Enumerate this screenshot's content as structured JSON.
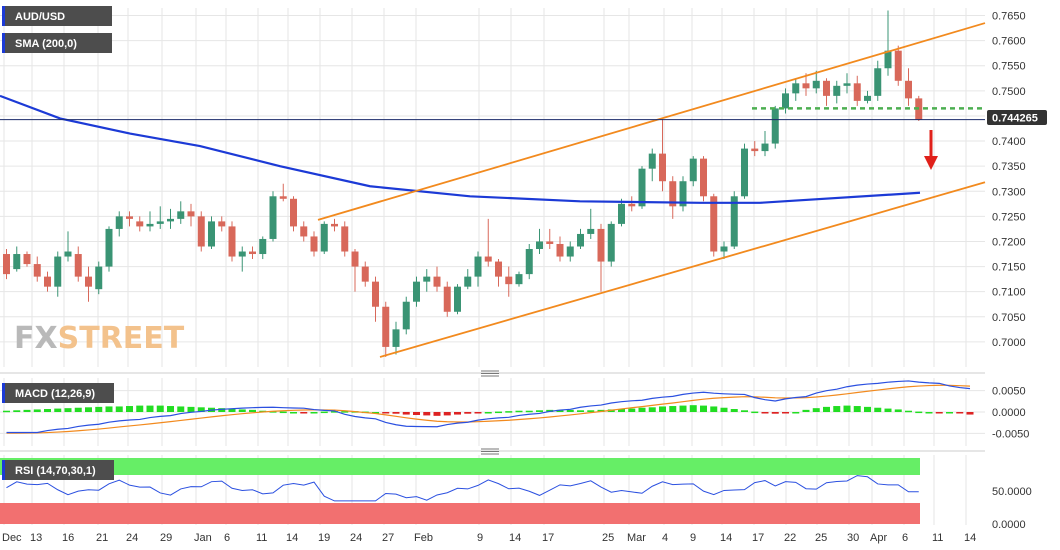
{
  "colors": {
    "up": "#3a9474",
    "down": "#d8685a",
    "sma": "#1c3ad6",
    "channel": "#f28a1e",
    "support": "#4caf50",
    "macd_line": "#2b50e0",
    "signal_line": "#f28a1e",
    "hist_pos": "#22dd22",
    "hist_neg": "#dd2222",
    "rsi_line": "#2b50e0",
    "rsi_overbought": "#66ee66",
    "rsi_oversold": "#f27070",
    "arrow": "#e0201a",
    "grid": "#e6e6e6"
  },
  "watermark": {
    "part1": "FX",
    "part2": "STREET"
  },
  "legends": {
    "symbol": "AUD/USD",
    "sma": "SMA (200,0)",
    "macd": "MACD (12,26,9)",
    "rsi": "RSI (14,70,30,1)"
  },
  "price_tag": "0.744265",
  "chart_data": [
    {
      "type": "candlestick",
      "title": "AUD/USD",
      "ylim": [
        0.695,
        0.7665
      ],
      "yticks": [
        "0.7000",
        "0.7050",
        "0.7100",
        "0.7150",
        "0.7200",
        "0.7250",
        "0.7300",
        "0.7350",
        "0.7400",
        "0.7450",
        "0.7500",
        "0.7550",
        "0.7600",
        "0.7650"
      ],
      "xticks": [
        "Dec",
        "13",
        "16",
        "21",
        "24",
        "29",
        "Jan",
        "6",
        "11",
        "14",
        "19",
        "24",
        "27",
        "Feb",
        "9",
        "14",
        "17",
        "25",
        "Mar",
        "4",
        "9",
        "14",
        "17",
        "22",
        "25",
        "30",
        "Apr",
        "6",
        "11",
        "14"
      ],
      "candles": [
        [
          0.7175,
          0.7185,
          0.7125,
          0.7135
        ],
        [
          0.7145,
          0.719,
          0.714,
          0.7175
        ],
        [
          0.7175,
          0.718,
          0.715,
          0.7155
        ],
        [
          0.7155,
          0.717,
          0.712,
          0.713
        ],
        [
          0.713,
          0.714,
          0.71,
          0.711
        ],
        [
          0.711,
          0.718,
          0.709,
          0.717
        ],
        [
          0.717,
          0.722,
          0.716,
          0.718
        ],
        [
          0.7175,
          0.719,
          0.712,
          0.713
        ],
        [
          0.713,
          0.715,
          0.708,
          0.711
        ],
        [
          0.7105,
          0.716,
          0.7095,
          0.715
        ],
        [
          0.715,
          0.723,
          0.714,
          0.7225
        ],
        [
          0.7225,
          0.726,
          0.721,
          0.725
        ],
        [
          0.725,
          0.726,
          0.723,
          0.7245
        ],
        [
          0.724,
          0.725,
          0.722,
          0.723
        ],
        [
          0.723,
          0.726,
          0.722,
          0.7235
        ],
        [
          0.7235,
          0.727,
          0.7225,
          0.724
        ],
        [
          0.724,
          0.7265,
          0.7225,
          0.7245
        ],
        [
          0.7245,
          0.728,
          0.7235,
          0.726
        ],
        [
          0.726,
          0.7275,
          0.723,
          0.725
        ],
        [
          0.725,
          0.726,
          0.718,
          0.719
        ],
        [
          0.719,
          0.725,
          0.7185,
          0.724
        ],
        [
          0.724,
          0.725,
          0.722,
          0.723
        ],
        [
          0.723,
          0.724,
          0.716,
          0.717
        ],
        [
          0.717,
          0.719,
          0.714,
          0.718
        ],
        [
          0.718,
          0.719,
          0.7165,
          0.7175
        ],
        [
          0.7175,
          0.721,
          0.7165,
          0.7205
        ],
        [
          0.7205,
          0.73,
          0.72,
          0.729
        ],
        [
          0.729,
          0.7315,
          0.728,
          0.7285
        ],
        [
          0.7285,
          0.729,
          0.722,
          0.723
        ],
        [
          0.723,
          0.724,
          0.72,
          0.721
        ],
        [
          0.721,
          0.722,
          0.717,
          0.718
        ],
        [
          0.718,
          0.724,
          0.7175,
          0.7235
        ],
        [
          0.7235,
          0.7245,
          0.722,
          0.723
        ],
        [
          0.723,
          0.724,
          0.717,
          0.718
        ],
        [
          0.718,
          0.7185,
          0.71,
          0.715
        ],
        [
          0.715,
          0.716,
          0.711,
          0.712
        ],
        [
          0.712,
          0.713,
          0.704,
          0.707
        ],
        [
          0.707,
          0.708,
          0.697,
          0.699
        ],
        [
          0.699,
          0.704,
          0.6975,
          0.7025
        ],
        [
          0.7025,
          0.709,
          0.7015,
          0.708
        ],
        [
          0.708,
          0.713,
          0.707,
          0.712
        ],
        [
          0.712,
          0.7145,
          0.71,
          0.713
        ],
        [
          0.713,
          0.715,
          0.71,
          0.711
        ],
        [
          0.711,
          0.712,
          0.705,
          0.706
        ],
        [
          0.706,
          0.7115,
          0.7055,
          0.711
        ],
        [
          0.711,
          0.7145,
          0.7105,
          0.713
        ],
        [
          0.713,
          0.718,
          0.711,
          0.717
        ],
        [
          0.717,
          0.7245,
          0.715,
          0.716
        ],
        [
          0.716,
          0.7165,
          0.711,
          0.713
        ],
        [
          0.713,
          0.715,
          0.709,
          0.7115
        ],
        [
          0.7115,
          0.714,
          0.711,
          0.7135
        ],
        [
          0.7135,
          0.7195,
          0.7125,
          0.7185
        ],
        [
          0.7185,
          0.7225,
          0.7175,
          0.72
        ],
        [
          0.72,
          0.7225,
          0.7185,
          0.7195
        ],
        [
          0.7195,
          0.721,
          0.716,
          0.717
        ],
        [
          0.717,
          0.72,
          0.716,
          0.719
        ],
        [
          0.719,
          0.7225,
          0.7185,
          0.7215
        ],
        [
          0.7215,
          0.7265,
          0.7205,
          0.7225
        ],
        [
          0.7225,
          0.7235,
          0.71,
          0.716
        ],
        [
          0.716,
          0.724,
          0.715,
          0.7235
        ],
        [
          0.7235,
          0.7285,
          0.723,
          0.7275
        ],
        [
          0.7275,
          0.729,
          0.726,
          0.727
        ],
        [
          0.727,
          0.735,
          0.7265,
          0.7345
        ],
        [
          0.7345,
          0.7385,
          0.732,
          0.7375
        ],
        [
          0.7375,
          0.7445,
          0.73,
          0.732
        ],
        [
          0.732,
          0.733,
          0.7245,
          0.727
        ],
        [
          0.727,
          0.733,
          0.726,
          0.732
        ],
        [
          0.732,
          0.737,
          0.731,
          0.7365
        ],
        [
          0.7365,
          0.737,
          0.728,
          0.729
        ],
        [
          0.729,
          0.7295,
          0.717,
          0.718
        ],
        [
          0.718,
          0.72,
          0.7165,
          0.719
        ],
        [
          0.719,
          0.73,
          0.7185,
          0.729
        ],
        [
          0.729,
          0.7395,
          0.7285,
          0.7385
        ],
        [
          0.7385,
          0.74,
          0.737,
          0.738
        ],
        [
          0.738,
          0.742,
          0.737,
          0.7395
        ],
        [
          0.7395,
          0.747,
          0.7385,
          0.7465
        ],
        [
          0.7465,
          0.7505,
          0.7455,
          0.7495
        ],
        [
          0.7495,
          0.7525,
          0.748,
          0.7515
        ],
        [
          0.7515,
          0.7535,
          0.749,
          0.7505
        ],
        [
          0.7505,
          0.754,
          0.7495,
          0.752
        ],
        [
          0.752,
          0.7525,
          0.747,
          0.749
        ],
        [
          0.749,
          0.752,
          0.7475,
          0.751
        ],
        [
          0.751,
          0.7535,
          0.7495,
          0.7515
        ],
        [
          0.7515,
          0.753,
          0.747,
          0.748
        ],
        [
          0.748,
          0.75,
          0.7475,
          0.749
        ],
        [
          0.749,
          0.756,
          0.748,
          0.7545
        ],
        [
          0.7545,
          0.766,
          0.753,
          0.758
        ],
        [
          0.758,
          0.759,
          0.751,
          0.752
        ],
        [
          0.752,
          0.7545,
          0.747,
          0.7485
        ],
        [
          0.7485,
          0.749,
          0.744,
          0.7443
        ]
      ],
      "sma200": {
        "name": "SMA (200,0)",
        "values": [
          0.749,
          0.7445,
          0.7415,
          0.739,
          0.735,
          0.731,
          0.729,
          0.728,
          0.7277,
          0.7277
        ]
      },
      "channel_upper": {
        "from": [
          0.7243,
          19
        ],
        "to": [
          0.7635,
          153
        ]
      },
      "channel_lower": {
        "from": [
          0.697,
          29
        ],
        "to": [
          0.7318,
          153
        ]
      },
      "support_level": 0.7465,
      "last_price": 0.744265
    },
    {
      "type": "macd",
      "title": "MACD (12,26,9)",
      "ylim": [
        -0.0075,
        0.0075
      ],
      "yticks": [
        "0.0050",
        "0.0000",
        "-0.0050"
      ],
      "histogram": [
        0.0003,
        0.0004,
        0.0005,
        0.0006,
        0.0007,
        0.0008,
        0.0009,
        0.001,
        0.0011,
        0.0012,
        0.0013,
        0.0013,
        0.0014,
        0.0015,
        0.0015,
        0.0015,
        0.0014,
        0.0013,
        0.0012,
        0.0011,
        0.001,
        0.0009,
        0.0008,
        0.0006,
        0.0005,
        0.0003,
        0.0002,
        0.0001,
        0.0,
        -0.0001,
        0.0,
        0.0001,
        0.0002,
        0.0002,
        0.0002,
        0.0001,
        0.0,
        -0.0002,
        -0.0004,
        -0.0006,
        -0.0007,
        -0.0008,
        -0.0009,
        -0.0008,
        -0.0006,
        -0.0004,
        -0.0002,
        0.0,
        0.0001,
        0.0002,
        0.0003,
        0.0003,
        0.0004,
        0.0005,
        0.0005,
        0.0005,
        0.0004,
        0.0004,
        0.0005,
        0.0006,
        0.0007,
        0.0008,
        0.001,
        0.0011,
        0.0013,
        0.0014,
        0.0015,
        0.0016,
        0.0015,
        0.0013,
        0.001,
        0.0007,
        0.0004,
        0.0001,
        -0.0002,
        -0.0004,
        -0.0003,
        0.0,
        0.0005,
        0.0009,
        0.0012,
        0.0014,
        0.0015,
        0.0014,
        0.0012,
        0.001,
        0.0008,
        0.0006,
        0.0003,
        0.0001,
        0.0,
        -0.0001,
        0.0,
        -0.0002,
        -0.0006
      ]
    },
    {
      "type": "rsi",
      "title": "RSI (14,70,30,1)",
      "ylim": [
        0,
        100
      ],
      "yticks": [
        "50.0000",
        "0.0000"
      ]
    }
  ]
}
